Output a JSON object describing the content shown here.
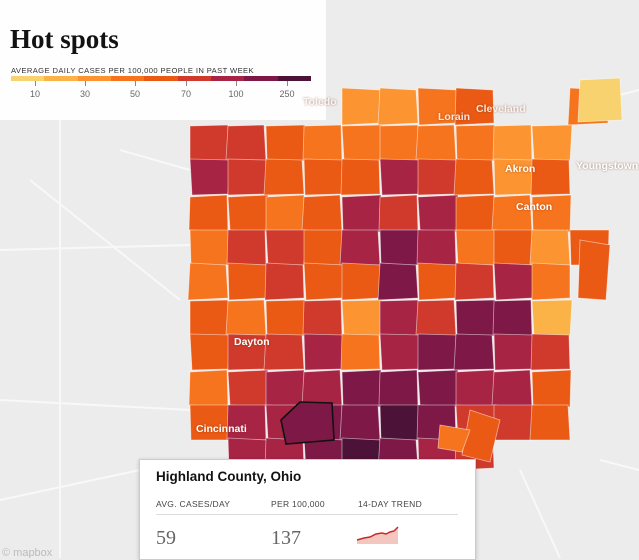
{
  "title": "Hot spots",
  "legend": {
    "caption": "AVERAGE DAILY CASES PER 100,000 PEOPLE IN PAST WEEK",
    "ticks": [
      "10",
      "30",
      "50",
      "70",
      "100",
      "250"
    ],
    "colors": [
      "#f7d26e",
      "#fbb247",
      "#fb9431",
      "#f6741e",
      "#ea5a14",
      "#cf3a2c",
      "#a82445",
      "#7e1947",
      "#4c1238"
    ]
  },
  "cities": {
    "toledo": "Toledo",
    "lorain": "Lorain",
    "cleveland": "Cleveland",
    "akron": "Akron",
    "youngstown": "Youngstown",
    "canton": "Canton",
    "dayton": "Dayton",
    "cincinnati": "Cincinnati"
  },
  "tooltip": {
    "county": "Highland County, Ohio",
    "avg_label": "AVG. CASES/DAY",
    "per_label": "PER 100,000",
    "trend_label": "14-DAY TREND",
    "avg_value": "59",
    "per_value": "137"
  },
  "attribution": "© mapbox"
}
